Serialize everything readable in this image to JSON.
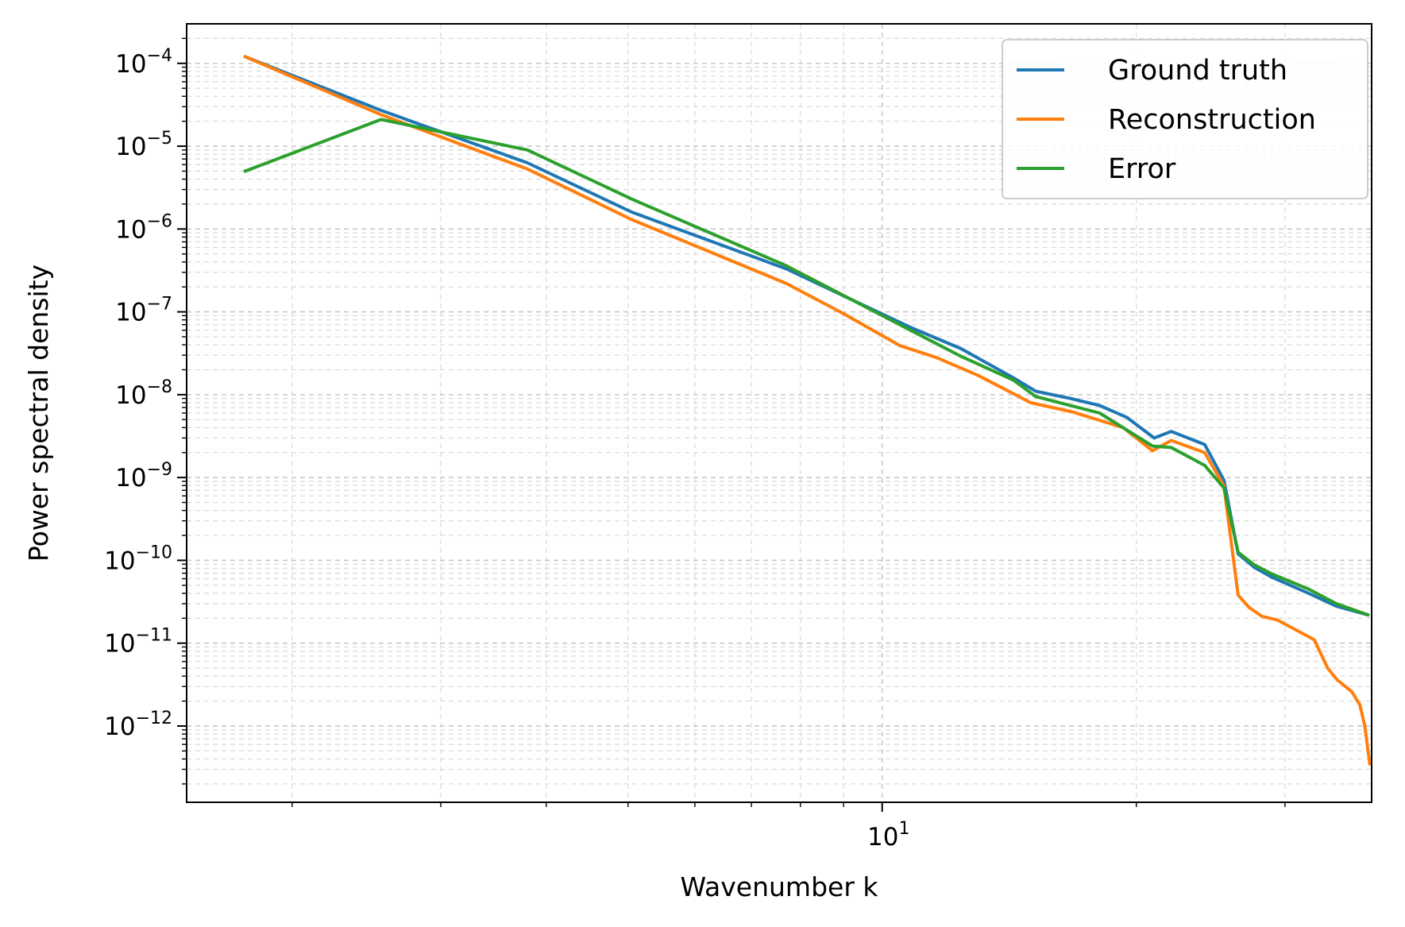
{
  "chart_data": {
    "type": "line",
    "title": "",
    "xlabel": "Wavenumber k",
    "ylabel": "Power spectral density",
    "xscale": "log",
    "yscale": "log",
    "xlim": [
      1.5,
      38
    ],
    "ylim": [
      1.2e-13,
      0.0003
    ],
    "grid": {
      "major": true,
      "minor": true,
      "style": "dashed"
    },
    "legend": "top-right",
    "x_ticks": [
      {
        "value": 10,
        "label": "10",
        "exp": "1"
      }
    ],
    "y_ticks": [
      {
        "value": 0.0001,
        "label": "10",
        "exp": "−4"
      },
      {
        "value": 1e-05,
        "label": "10",
        "exp": "−5"
      },
      {
        "value": 1e-06,
        "label": "10",
        "exp": "−6"
      },
      {
        "value": 1e-07,
        "label": "10",
        "exp": "−7"
      },
      {
        "value": 1e-08,
        "label": "10",
        "exp": "−8"
      },
      {
        "value": 1e-09,
        "label": "10",
        "exp": "−9"
      },
      {
        "value": 1e-10,
        "label": "10",
        "exp": "−10"
      },
      {
        "value": 1e-11,
        "label": "10",
        "exp": "−11"
      },
      {
        "value": 1e-12,
        "label": "10",
        "exp": "−12"
      }
    ],
    "series": [
      {
        "name": "Ground truth",
        "color": "#1f77b4",
        "points": [
          [
            1.76,
            0.00012
          ],
          [
            2.55,
            2.7e-05
          ],
          [
            3.8,
            6.3e-06
          ],
          [
            5.05,
            1.6e-06
          ],
          [
            7.7,
            3.3e-07
          ],
          [
            10.8,
            6.5e-08
          ],
          [
            12.4,
            3.6e-08
          ],
          [
            14.3,
            1.6e-08
          ],
          [
            15.2,
            1.1e-08
          ],
          [
            16.7,
            9e-09
          ],
          [
            18.1,
            7.4e-09
          ],
          [
            19.5,
            5.3e-09
          ],
          [
            21.0,
            3e-09
          ],
          [
            22.0,
            3.6e-09
          ],
          [
            24.1,
            2.5e-09
          ],
          [
            25.4,
            9.3e-10
          ],
          [
            26.4,
            1.2e-10
          ],
          [
            27.6,
            8.2e-11
          ],
          [
            29.0,
            6.2e-11
          ],
          [
            32.0,
            4e-11
          ],
          [
            34.5,
            2.8e-11
          ],
          [
            37.6,
            2.2e-11
          ]
        ]
      },
      {
        "name": "Reconstruction",
        "color": "#ff7f0e",
        "points": [
          [
            1.76,
            0.00012
          ],
          [
            2.55,
            2.4e-05
          ],
          [
            3.8,
            5.3e-06
          ],
          [
            5.05,
            1.3e-06
          ],
          [
            7.7,
            2.2e-07
          ],
          [
            9.0,
            9.5e-08
          ],
          [
            10.5,
            3.9e-08
          ],
          [
            11.6,
            2.8e-08
          ],
          [
            13.0,
            1.7e-08
          ],
          [
            15.0,
            8e-09
          ],
          [
            16.8,
            6.2e-09
          ],
          [
            19.3,
            4e-09
          ],
          [
            20.9,
            2.1e-09
          ],
          [
            22.0,
            2.8e-09
          ],
          [
            24.1,
            2e-09
          ],
          [
            25.4,
            7.9e-10
          ],
          [
            26.4,
            3.8e-11
          ],
          [
            27.2,
            2.7e-11
          ],
          [
            28.2,
            2.1e-11
          ],
          [
            29.4,
            1.9e-11
          ],
          [
            32.5,
            1.1e-11
          ],
          [
            33.7,
            5e-12
          ],
          [
            34.6,
            3.6e-12
          ],
          [
            36.0,
            2.6e-12
          ],
          [
            36.8,
            1.8e-12
          ],
          [
            37.3,
            1e-12
          ],
          [
            37.8,
            3.5e-13
          ]
        ]
      },
      {
        "name": "Error",
        "color": "#2ca02c",
        "points": [
          [
            1.76,
            5e-06
          ],
          [
            2.55,
            2.1e-05
          ],
          [
            3.8,
            9e-06
          ],
          [
            5.05,
            2.3e-06
          ],
          [
            7.7,
            3.6e-07
          ],
          [
            10.8,
            6e-08
          ],
          [
            12.4,
            2.9e-08
          ],
          [
            14.3,
            1.5e-08
          ],
          [
            15.2,
            9.5e-09
          ],
          [
            18.1,
            6e-09
          ],
          [
            20.9,
            2.4e-09
          ],
          [
            22.0,
            2.3e-09
          ],
          [
            24.1,
            1.4e-09
          ],
          [
            25.4,
            7.5e-10
          ],
          [
            26.4,
            1.25e-10
          ],
          [
            27.6,
            8.8e-11
          ],
          [
            29.0,
            6.8e-11
          ],
          [
            32.0,
            4.5e-11
          ],
          [
            34.5,
            3e-11
          ],
          [
            37.6,
            2.2e-11
          ]
        ]
      }
    ]
  }
}
